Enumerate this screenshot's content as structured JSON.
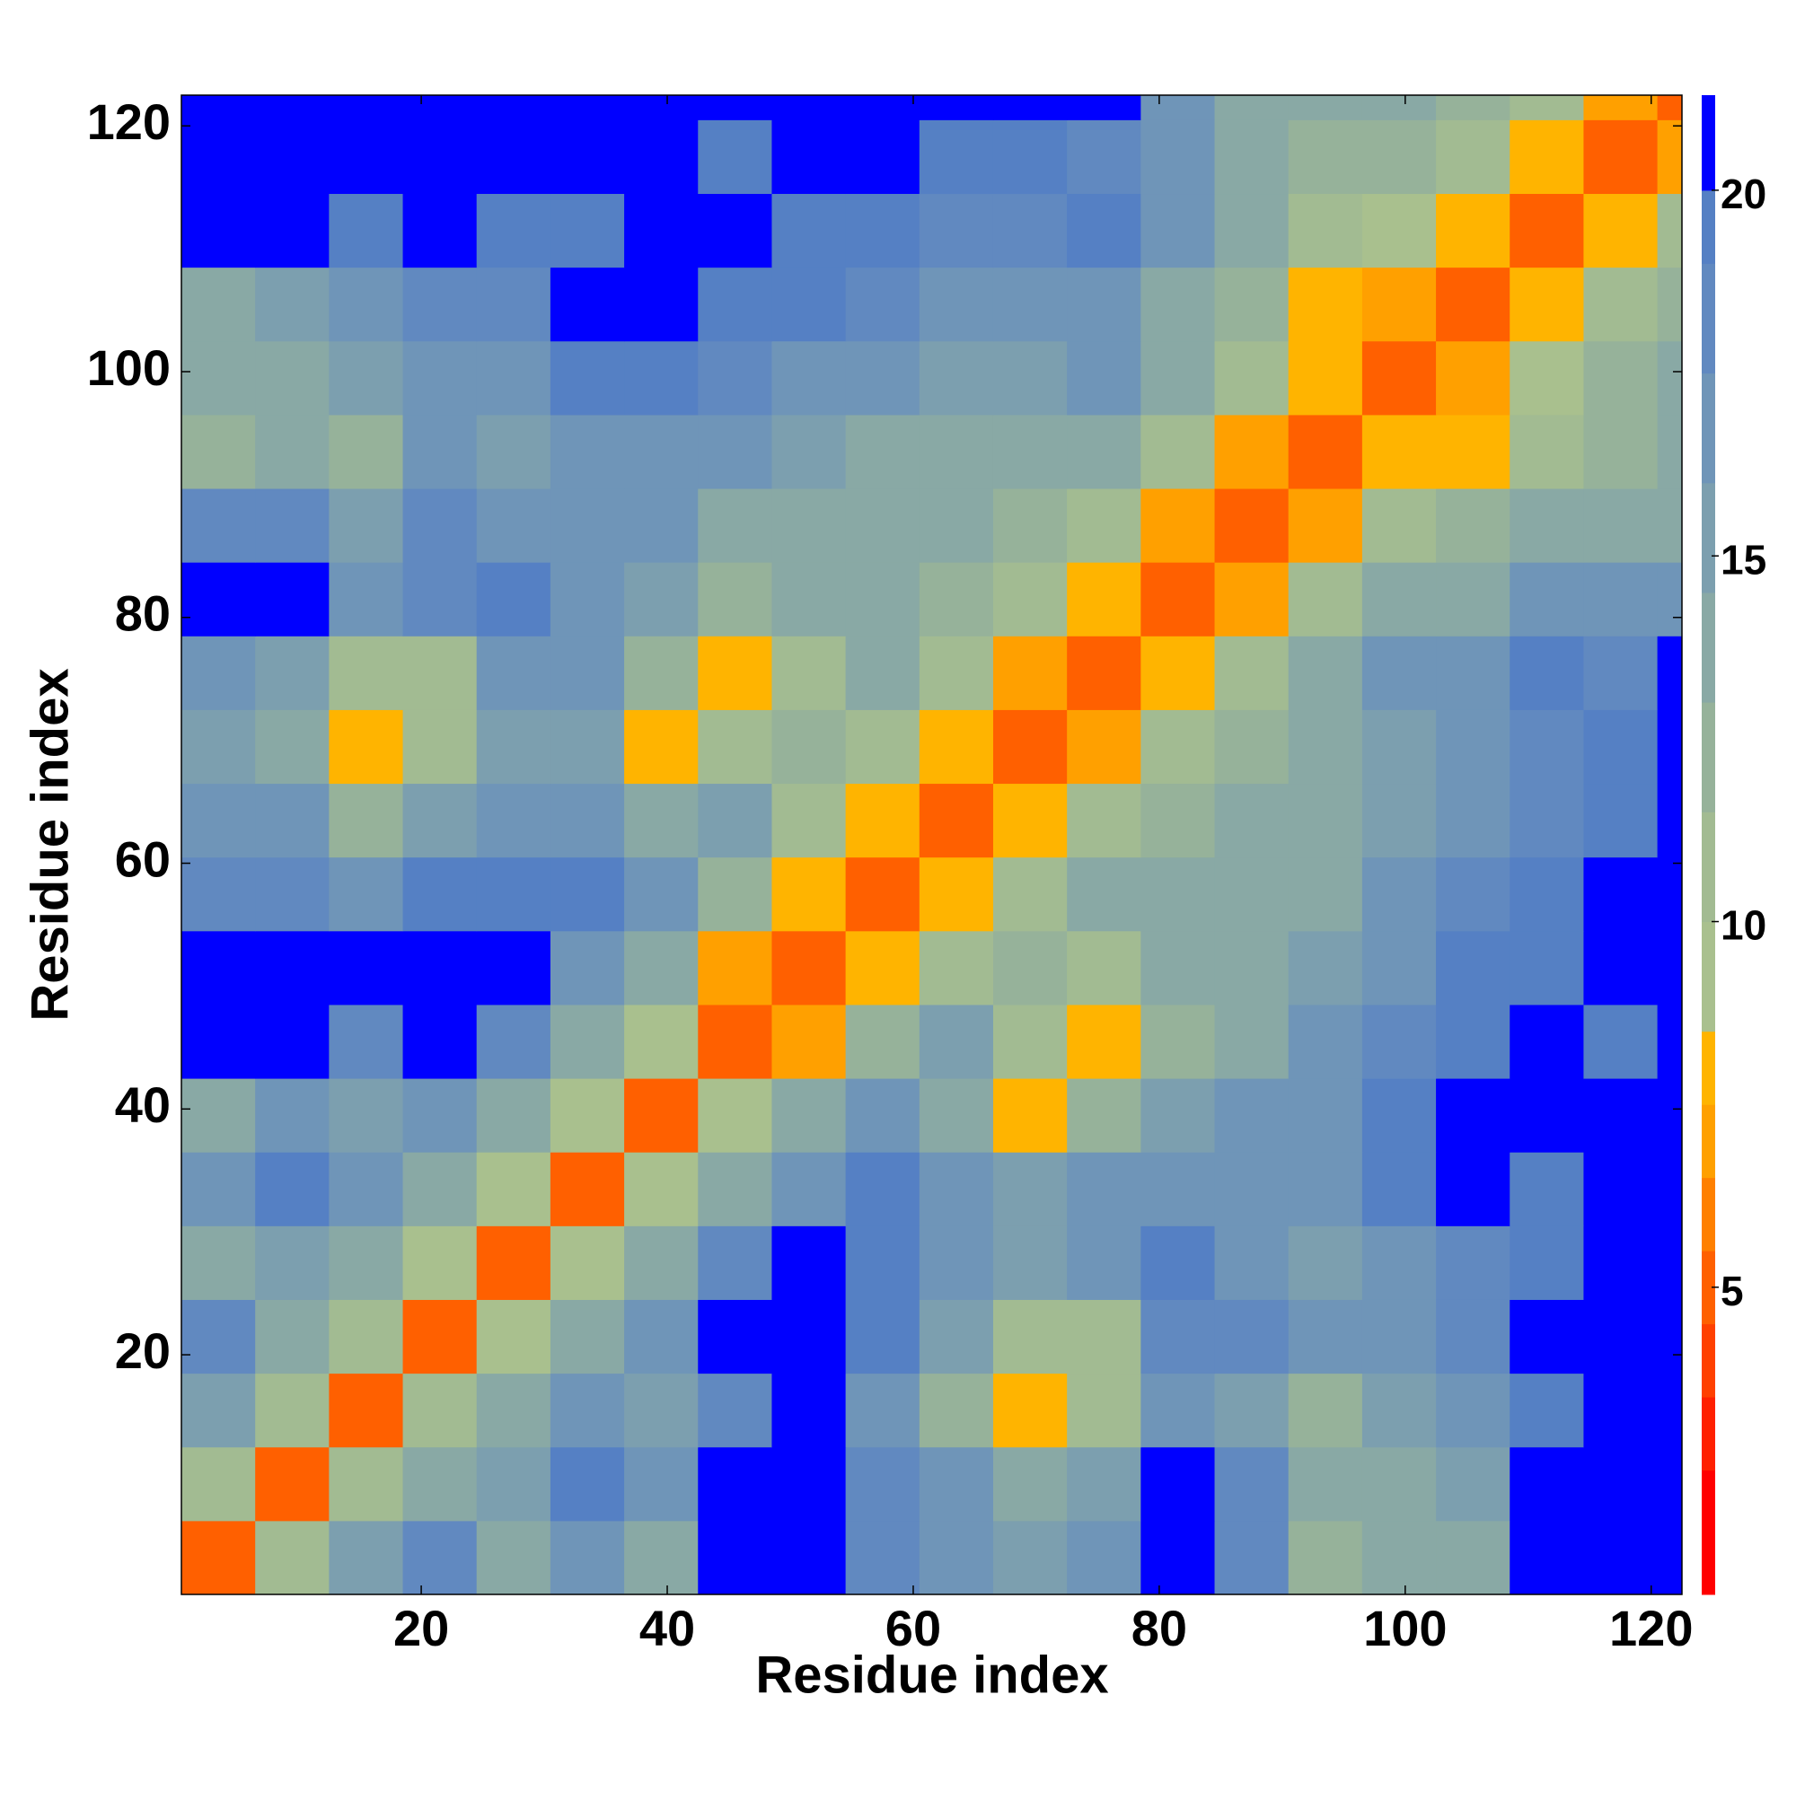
{
  "chart_data": {
    "type": "heatmap",
    "xlabel": "Residue index",
    "ylabel": "Residue index",
    "xlim": [
      0.5,
      122.5
    ],
    "ylim": [
      0.5,
      122.5
    ],
    "xticks": [
      20,
      40,
      60,
      80,
      100,
      120
    ],
    "yticks": [
      20,
      40,
      60,
      80,
      100,
      120
    ],
    "x_edges": [
      0.5,
      6.5,
      12.5,
      18.5,
      24.5,
      30.5,
      36.5,
      42.5,
      48.5,
      54.5,
      60.5,
      66.5,
      72.5,
      78.5,
      84.5,
      90.5,
      96.5,
      102.5,
      108.5,
      114.5,
      120.5,
      122.5
    ],
    "y_edges": [
      0.5,
      6.5,
      12.5,
      18.5,
      24.5,
      30.5,
      36.5,
      42.5,
      48.5,
      54.5,
      60.5,
      66.5,
      72.5,
      78.5,
      84.5,
      90.5,
      96.5,
      102.5,
      108.5,
      114.5,
      120.5,
      122.5
    ],
    "z": [
      [
        5,
        10,
        15,
        18,
        14,
        16,
        14,
        20,
        21,
        18,
        16,
        15,
        16,
        20,
        18,
        12,
        13,
        14,
        20,
        21,
        22
      ],
      [
        10,
        5,
        10,
        14,
        15,
        19,
        17,
        21,
        22,
        18,
        16,
        13,
        15,
        20,
        18,
        13,
        14,
        15,
        20,
        21,
        22
      ],
      [
        15,
        10,
        5,
        10,
        14,
        16,
        15,
        18,
        20,
        17,
        12,
        8,
        10,
        17,
        15,
        12,
        15,
        17,
        19,
        21,
        22
      ],
      [
        18,
        14,
        10,
        5,
        9,
        14,
        17,
        20,
        21,
        19,
        15,
        11,
        10,
        18,
        18,
        16,
        17,
        18,
        20,
        21,
        22
      ],
      [
        14,
        15,
        14,
        9,
        5,
        9,
        13,
        18,
        20,
        19,
        17,
        15,
        17,
        19,
        17,
        15,
        16,
        18,
        19,
        21,
        22
      ],
      [
        16,
        19,
        16,
        14,
        9,
        5,
        9,
        13,
        17,
        19,
        16,
        15,
        17,
        17,
        16,
        17,
        19,
        20,
        19,
        20,
        22
      ],
      [
        14,
        17,
        15,
        17,
        13,
        9,
        5,
        9,
        13,
        16,
        13,
        8,
        12,
        15,
        16,
        17,
        19,
        20,
        21,
        20,
        22
      ],
      [
        20,
        21,
        18,
        20,
        18,
        13,
        9,
        5,
        7,
        12,
        15,
        10,
        8,
        12,
        14,
        16,
        18,
        19,
        20,
        19,
        20
      ],
      [
        21,
        22,
        20,
        21,
        20,
        17,
        13,
        7,
        5,
        8,
        11,
        12,
        11,
        13,
        14,
        15,
        17,
        19,
        19,
        20,
        21
      ],
      [
        18,
        18,
        17,
        19,
        19,
        19,
        16,
        12,
        8,
        5,
        8,
        11,
        13,
        14,
        14,
        14,
        16,
        18,
        19,
        20,
        21
      ],
      [
        16,
        16,
        12,
        15,
        17,
        16,
        13,
        15,
        11,
        8,
        5,
        8,
        10,
        12,
        13,
        13,
        15,
        17,
        18,
        19,
        20
      ],
      [
        15,
        13,
        8,
        11,
        15,
        15,
        8,
        10,
        12,
        11,
        8,
        5,
        7,
        10,
        12,
        13,
        15,
        16,
        18,
        19,
        20
      ],
      [
        16,
        15,
        10,
        10,
        17,
        17,
        12,
        8,
        11,
        13,
        10,
        7,
        5,
        8,
        10,
        13,
        16,
        17,
        19,
        18,
        20
      ],
      [
        20,
        20,
        17,
        18,
        19,
        17,
        15,
        12,
        13,
        14,
        12,
        10,
        8,
        5,
        7,
        11,
        14,
        14,
        17,
        16,
        17
      ],
      [
        18,
        18,
        15,
        18,
        17,
        16,
        16,
        14,
        14,
        14,
        13,
        12,
        10,
        7,
        5,
        7,
        11,
        12,
        14,
        13,
        14
      ],
      [
        12,
        13,
        12,
        16,
        15,
        17,
        17,
        16,
        15,
        14,
        13,
        13,
        13,
        11,
        7,
        5,
        8,
        8,
        11,
        12,
        14
      ],
      [
        13,
        14,
        15,
        17,
        16,
        19,
        19,
        18,
        17,
        16,
        15,
        15,
        16,
        14,
        11,
        8,
        5,
        7,
        9,
        12,
        14
      ],
      [
        14,
        15,
        17,
        18,
        18,
        20,
        20,
        19,
        19,
        18,
        17,
        16,
        17,
        14,
        12,
        8,
        7,
        5,
        8,
        10,
        12
      ],
      [
        20,
        20,
        19,
        20,
        19,
        19,
        21,
        20,
        19,
        19,
        18,
        18,
        19,
        17,
        14,
        11,
        9,
        8,
        5,
        8,
        10
      ],
      [
        21,
        21,
        21,
        21,
        21,
        20,
        20,
        19,
        20,
        20,
        19,
        19,
        18,
        16,
        13,
        12,
        12,
        10,
        8,
        5,
        7
      ],
      [
        22,
        22,
        22,
        22,
        22,
        22,
        22,
        20,
        21,
        21,
        20,
        20,
        20,
        17,
        14,
        14,
        14,
        12,
        10,
        7,
        5
      ]
    ],
    "colorbar": {
      "clim": [
        0.8,
        21.3
      ],
      "ticks": [
        5,
        10,
        15,
        20
      ],
      "levels": [
        0.8,
        2.5,
        3.5,
        4.5,
        5.5,
        6.5,
        7.5,
        8.5,
        10,
        11.5,
        13,
        14.5,
        16,
        17.5,
        19,
        20,
        21.3
      ],
      "colors": [
        "#ff0000",
        "#ff2000",
        "#ff4000",
        "#ff6000",
        "#ff8000",
        "#ffa000",
        "#ffb400",
        "#a9c08e",
        "#a2bb92",
        "#96b29a",
        "#89a9a5",
        "#7c9faf",
        "#6f95b8",
        "#6189c0",
        "#5580c4",
        "#0000ff"
      ]
    }
  }
}
